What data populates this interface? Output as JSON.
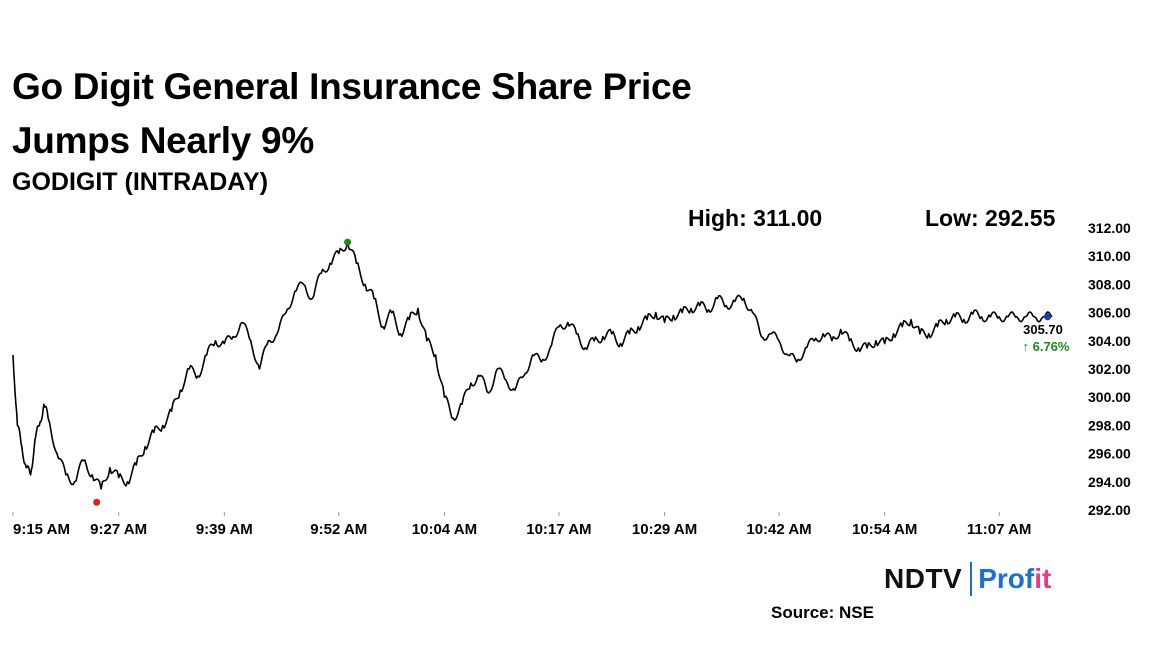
{
  "headline": "Go Digit General Insurance Share Price Jumps Nearly 9%",
  "subtitle": "GODIGIT (INTRADAY)",
  "stats": {
    "high": "High: 311.00",
    "low": "Low: 292.55"
  },
  "last": {
    "price": "305.70",
    "change": "↑ 6.76%"
  },
  "logo": {
    "ndtv": "NDTV",
    "profit_main": "Prof",
    "profit_tail": "it"
  },
  "source": "Source: NSE",
  "colors": {
    "line": "#000000",
    "high_dot": "#1a8c1a",
    "low_dot": "#e0201c",
    "last_dot": "#1a3fb0",
    "change": "#1a8c1a",
    "grid": "#dddddd"
  },
  "chart_data": {
    "type": "line",
    "title": "",
    "xlabel": "",
    "ylabel": "",
    "ylim": [
      292,
      312
    ],
    "yticks": [
      "312.00",
      "310.00",
      "308.00",
      "306.00",
      "304.00",
      "302.00",
      "300.00",
      "298.00",
      "296.00",
      "294.00",
      "292.00"
    ],
    "xticks": [
      "9:15 AM",
      "9:27 AM",
      "9:39 AM",
      "9:52 AM",
      "10:04 AM",
      "10:17 AM",
      "10:29 AM",
      "10:42 AM",
      "10:54 AM",
      "11:07 AM"
    ],
    "xtick_minutes": [
      0,
      12,
      24,
      37,
      49,
      62,
      74,
      87,
      99,
      112
    ],
    "x_minutes_max": 118,
    "series": [
      {
        "x_minutes": [
          0,
          0.5,
          1,
          1.5,
          2,
          2.5,
          3,
          3.5,
          4,
          5,
          6,
          7,
          8,
          9,
          10,
          11,
          12,
          13,
          14,
          15,
          16,
          17,
          18,
          19,
          20,
          21,
          22,
          23,
          24,
          25,
          26,
          27,
          28,
          29,
          30,
          31,
          32,
          33,
          34,
          35,
          36,
          37,
          38,
          39,
          40,
          41,
          42,
          43,
          44,
          45,
          46,
          47,
          48,
          49,
          50,
          51,
          52,
          53,
          54,
          55,
          56,
          57,
          58,
          59,
          60,
          61,
          62,
          63,
          64,
          65,
          66,
          67,
          68,
          69,
          70,
          71,
          72,
          73,
          74,
          75,
          76,
          77,
          78,
          79,
          80,
          81,
          82,
          83,
          84,
          85,
          86,
          87,
          88,
          89,
          90,
          91,
          92,
          93,
          94,
          95,
          96,
          97,
          98,
          99,
          100,
          101,
          102,
          103,
          104,
          105,
          106,
          107,
          108,
          109,
          110,
          111,
          112,
          113,
          114,
          115,
          116,
          117,
          118
        ],
        "values": [
          303.0,
          298.0,
          296.5,
          295.0,
          294.5,
          297.0,
          298.0,
          299.5,
          298.5,
          296.0,
          294.5,
          294.0,
          295.5,
          294.5,
          293.5,
          295.0,
          294.3,
          294.0,
          295.2,
          296.5,
          297.5,
          298.0,
          299.0,
          300.5,
          302.0,
          301.5,
          303.0,
          304.0,
          303.8,
          304.3,
          305.3,
          304.0,
          302.0,
          304.0,
          304.5,
          306.0,
          307.5,
          308.0,
          307.0,
          308.8,
          309.5,
          310.2,
          311.0,
          309.5,
          308.0,
          307.0,
          305.0,
          306.0,
          304.5,
          305.5,
          306.3,
          304.0,
          303.0,
          300.0,
          298.5,
          299.5,
          301.0,
          301.5,
          300.3,
          302.0,
          301.2,
          300.5,
          301.5,
          303.0,
          302.5,
          303.5,
          305.0,
          305.3,
          304.5,
          303.5,
          304.0,
          304.3,
          304.5,
          303.8,
          304.5,
          305.0,
          305.5,
          306.0,
          305.3,
          305.8,
          306.0,
          306.3,
          306.5,
          306.2,
          307.0,
          306.5,
          306.8,
          307.0,
          306.0,
          304.3,
          304.5,
          304.0,
          303.0,
          302.5,
          303.5,
          304.0,
          304.5,
          304.0,
          304.8,
          304.0,
          303.5,
          303.5,
          304.0,
          303.8,
          304.5,
          305.0,
          305.5,
          304.5,
          304.5,
          305.0,
          305.5,
          305.7,
          305.5,
          305.9,
          305.7,
          305.7,
          305.7,
          305.7,
          305.7,
          305.7,
          305.7,
          305.7,
          305.7
        ],
        "_note": "approximate visual path"
      }
    ],
    "high": {
      "x_minutes": 38,
      "value": 311.0
    },
    "low": {
      "x_minutes": 9.5,
      "value": 292.55
    },
    "last": {
      "x_minutes": 117.5,
      "value": 305.7
    }
  }
}
